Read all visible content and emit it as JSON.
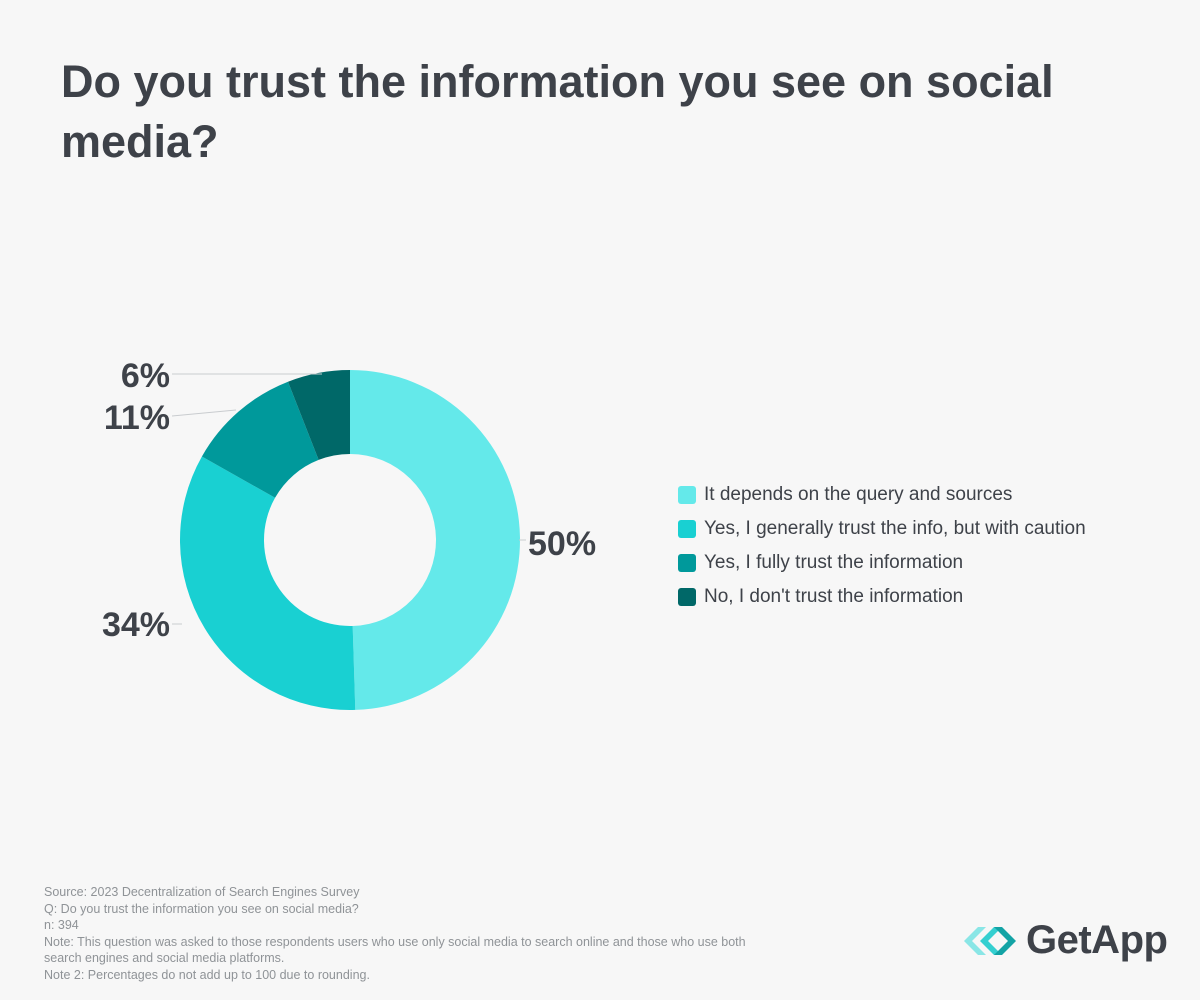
{
  "title": "Do you trust the information you see on social media?",
  "chart_data": {
    "type": "pie",
    "donut": true,
    "categories": [
      "It depends on the query and sources",
      "Yes, I generally trust the info, but with caution",
      "Yes, I fully trust the information",
      "No, I don't trust the information"
    ],
    "values": [
      50,
      34,
      11,
      6
    ],
    "labels": [
      "50%",
      "34%",
      "11%",
      "6%"
    ],
    "colors": [
      "#64e9ea",
      "#19d0d2",
      "#00999b",
      "#006868"
    ],
    "legend": "right"
  },
  "notes": {
    "source": "Source: 2023 Decentralization of Search Engines Survey",
    "question": "Q: Do you trust the information you see on social media?",
    "n": "n: 394",
    "note1_line1": "Note: This question was asked to those respondents users who use only social media to search online and those who use both",
    "note1_line2": "search engines and social media platforms.",
    "note2": "Note 2: Percentages do not add up to 100 due to rounding."
  },
  "logo": {
    "text": "GetApp",
    "icon": "getapp-chevrons-icon",
    "colors": [
      "#8ae6e6",
      "#35cfd0",
      "#13a3a5"
    ]
  }
}
